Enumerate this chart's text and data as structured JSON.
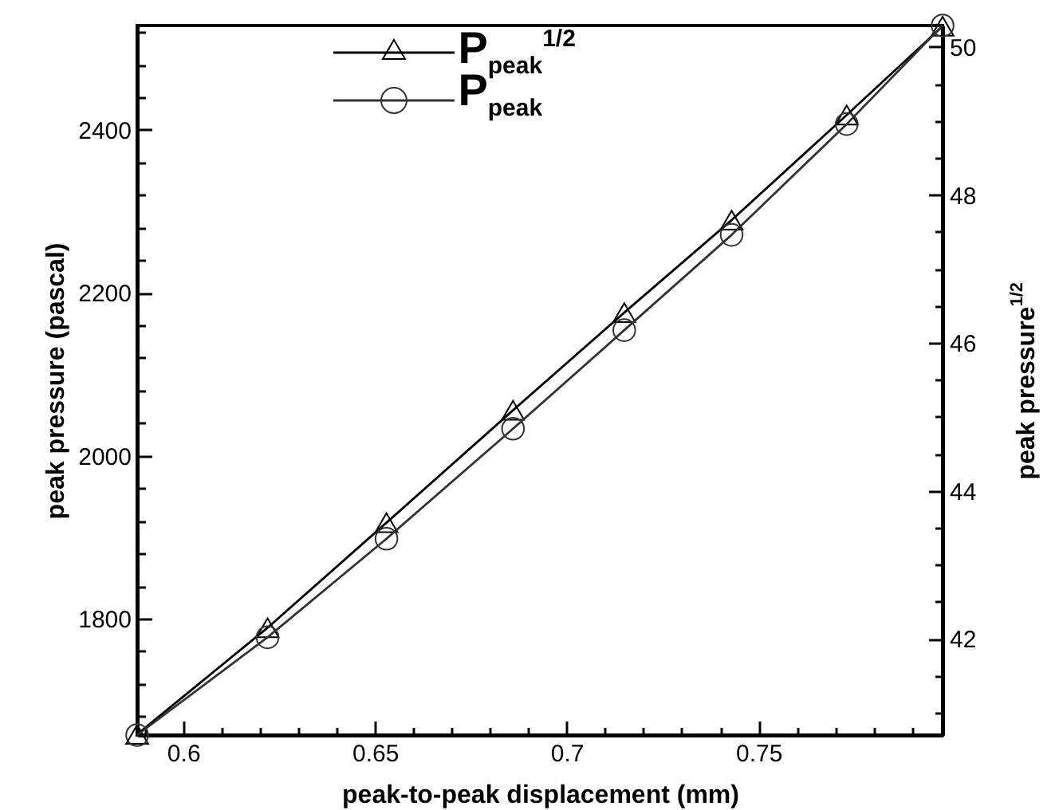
{
  "chart_data": {
    "type": "line",
    "xlabel": "peak-to-peak displacement (mm)",
    "ylabel": "peak pressure (pascal)",
    "y2label": "peak pressure$^{1/2}$",
    "x": [
      0.588,
      0.622,
      0.653,
      0.686,
      0.715,
      0.743,
      0.773,
      0.798
    ],
    "series": [
      {
        "name": "P$_{peak}$$^{1/2}$",
        "color": "#000000",
        "axis": "y2",
        "marker": "triangle",
        "values": [
          40.71,
          42.15,
          43.57,
          45.09,
          46.41,
          47.66,
          49.08,
          50.28
        ]
      },
      {
        "name": "P$_{peak}$",
        "color": "#333333",
        "marker": "circle",
        "values": [
          1657,
          1777,
          1898,
          2033,
          2154,
          2271,
          2407,
          2528
        ]
      }
    ],
    "xlim": [
      0.588,
      0.798
    ],
    "xticks": [
      {
        "value": 0.59,
        "label": null
      },
      "0.6",
      {
        "value": 0.61,
        "label": null
      },
      {
        "value": 0.62,
        "label": null
      },
      {
        "value": 0.63,
        "label": null
      },
      {
        "value": 0.64,
        "label": null
      },
      0.65,
      {
        "value": 0.66,
        "label": null
      },
      {
        "value": 0.67,
        "label": null
      },
      {
        "value": 0.68,
        "label": null
      },
      {
        "value": 0.69,
        "label": null
      },
      0.7,
      {
        "value": 0.71,
        "label": null
      },
      {
        "value": 0.72,
        "label": null
      },
      {
        "value": 0.73,
        "label": null
      },
      {
        "value": 0.74,
        "label": null
      },
      0.75,
      {
        "value": 0.76,
        "label": null
      },
      {
        "value": 0.77,
        "label": null
      },
      {
        "value": 0.78,
        "label": null
      },
      {
        "value": 0.79,
        "label": null
      }
    ],
    "ylim": [
      1657,
      2528
    ],
    "yticks": [
      {
        "value": 1680,
        "label": null
      },
      {
        "value": 1720,
        "label": null
      },
      {
        "value": 1760,
        "label": null
      },
      1800,
      {
        "value": 1840,
        "label": null
      },
      {
        "value": 1880,
        "label": null
      },
      {
        "value": 1920,
        "label": null
      },
      {
        "value": 1960,
        "label": null
      },
      2000,
      {
        "value": 2040,
        "label": null
      },
      {
        "value": 2080,
        "label": null
      },
      {
        "value": 2120,
        "label": null
      },
      {
        "value": 2160,
        "label": null
      },
      2200,
      {
        "value": 2240,
        "label": null
      },
      {
        "value": 2280,
        "label": null
      },
      {
        "value": 2320,
        "label": null
      },
      {
        "value": 2360,
        "label": null
      },
      2400,
      {
        "value": 2440,
        "label": null
      },
      {
        "value": 2480,
        "label": null
      },
      {
        "value": 2520,
        "label": null
      }
    ],
    "y2lim": [
      40.7,
      50.29
    ],
    "y2ticks": [
      {
        "value": 41,
        "label": null
      },
      {
        "value": 41.5,
        "label": null
      },
      42,
      {
        "value": 42.5,
        "label": null
      },
      {
        "value": 43,
        "label": null
      },
      {
        "value": 43.5,
        "label": null
      },
      44,
      {
        "value": 44.5,
        "label": null
      },
      {
        "value": 45,
        "label": null
      },
      {
        "value": 45.5,
        "label": null
      },
      46,
      {
        "value": 46.5,
        "label": null
      },
      {
        "value": 47,
        "label": null
      },
      {
        "value": 47.5,
        "label": null
      },
      48,
      {
        "value": 48.5,
        "label": null
      },
      {
        "value": 49,
        "label": null
      },
      {
        "value": 49.5,
        "label": null
      },
      50
    ],
    "grid": false,
    "legend": "top"
  }
}
